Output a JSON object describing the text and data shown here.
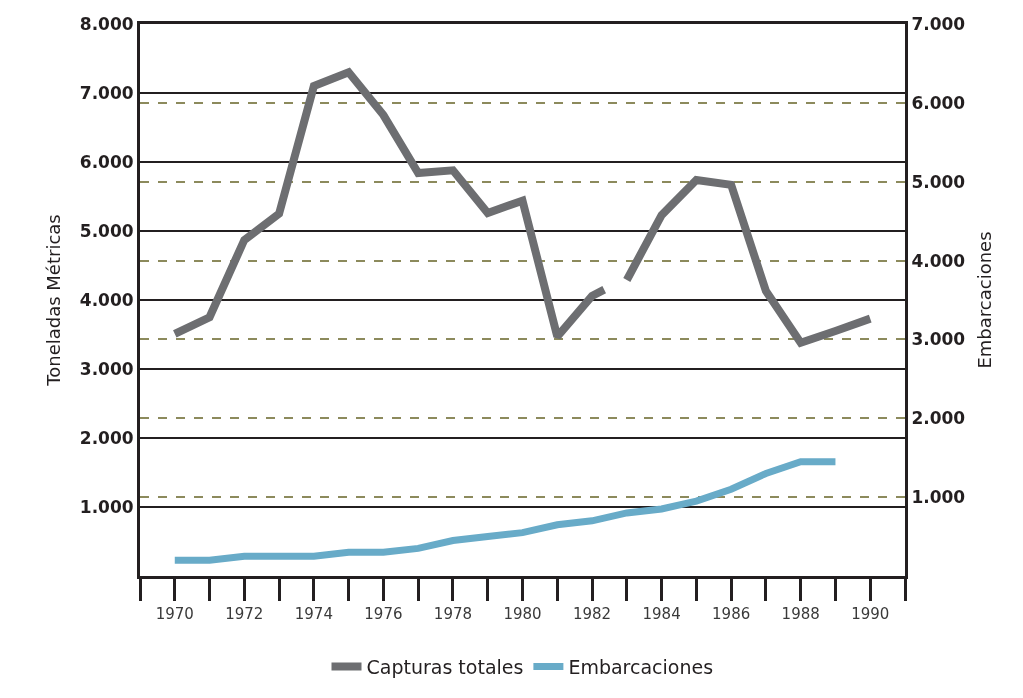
{
  "chart_data": {
    "type": "line",
    "xlabel": null,
    "ylabel": "Toneladas Métricas",
    "y2label": "Embarcaciones",
    "xlim": [
      1969,
      1991
    ],
    "xticks": [
      1970,
      1972,
      1974,
      1976,
      1978,
      1980,
      1982,
      1984,
      1986,
      1988,
      1990
    ],
    "ylim": [
      0,
      8000
    ],
    "yticks": [
      {
        "value": 1000,
        "label": "1.000"
      },
      {
        "value": 2000,
        "label": "2.000"
      },
      {
        "value": 3000,
        "label": "3.000"
      },
      {
        "value": 4000,
        "label": "4.000"
      },
      {
        "value": 5000,
        "label": "5.000"
      },
      {
        "value": 6000,
        "label": "6.000"
      },
      {
        "value": 7000,
        "label": "7.000"
      },
      {
        "value": 8000,
        "label": "8.000"
      }
    ],
    "y2lim": [
      0,
      7000
    ],
    "y2ticks": [
      {
        "value": 1000,
        "label": "1.000"
      },
      {
        "value": 2000,
        "label": "2.000"
      },
      {
        "value": 3000,
        "label": "3.000"
      },
      {
        "value": 4000,
        "label": "4.000"
      },
      {
        "value": 5000,
        "label": "5.000"
      },
      {
        "value": 6000,
        "label": "6.000"
      },
      {
        "value": 7000,
        "label": "7.000"
      }
    ],
    "grid": true,
    "legend": "bottom",
    "marker": "none",
    "line_style": "solid",
    "series": [
      {
        "name": "Capturas totales",
        "color": "#6d6e71",
        "x": [
          1970,
          1971,
          1972,
          1973,
          1974,
          1975,
          1976,
          1977,
          1978,
          1979,
          1980,
          1981,
          1982,
          1982.35,
          1982.7,
          1983,
          1984,
          1985,
          1986,
          1987,
          1988,
          1989,
          1990
        ],
        "values": [
          3510,
          3750,
          4870,
          5250,
          7100,
          7300,
          6680,
          5840,
          5880,
          5260,
          5440,
          3470,
          4060,
          4150,
          null,
          4290,
          5230,
          5740,
          5670,
          4130,
          3380,
          3550,
          3730
        ]
      },
      {
        "name": "Embarcaciones",
        "color": "#68abc8",
        "axis": "y2",
        "x": [
          1970,
          1971,
          1972,
          1973,
          1974,
          1975,
          1976,
          1977,
          1978,
          1979,
          1980,
          1981,
          1982,
          1983,
          1984,
          1985,
          1986,
          1987,
          1988,
          1989
        ],
        "values": [
          200,
          200,
          250,
          250,
          250,
          300,
          300,
          350,
          450,
          500,
          550,
          650,
          700,
          800,
          850,
          950,
          1100,
          1300,
          1450,
          1450
        ]
      }
    ]
  }
}
